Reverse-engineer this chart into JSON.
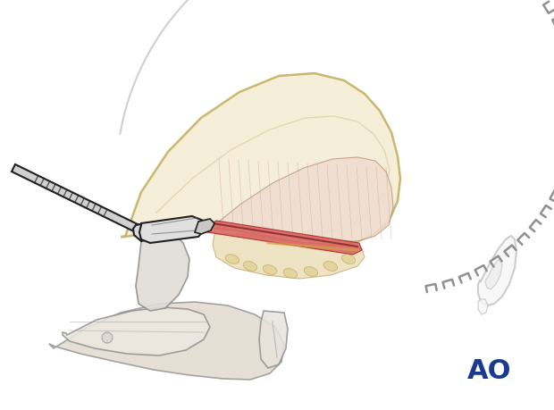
{
  "bg_color": "#ffffff",
  "ao_text": "AO",
  "ao_color": "#1a3a8f",
  "ao_fontsize": 22,
  "scalp_color": "#f5eed8",
  "scalp_edge_color": "#c8b870",
  "muscle_color": "#f0ddd0",
  "muscle_edge_color": "#c09880",
  "incision_red": "#cc3333",
  "incision_dark": "#882222",
  "retractor_fill": "#e8e8e8",
  "retractor_edge": "#505050",
  "staple_color": "#909090",
  "scalpel_dark": "#202020",
  "scalpel_mid": "#606060",
  "scalpel_light": "#c0c0c0",
  "ear_color": "#c8c8c8",
  "ear_fill": "#f8f8f8",
  "fat_color": "#e8d8a8",
  "tissue_gray": "#d8d0c0",
  "tissue_edge": "#909090"
}
